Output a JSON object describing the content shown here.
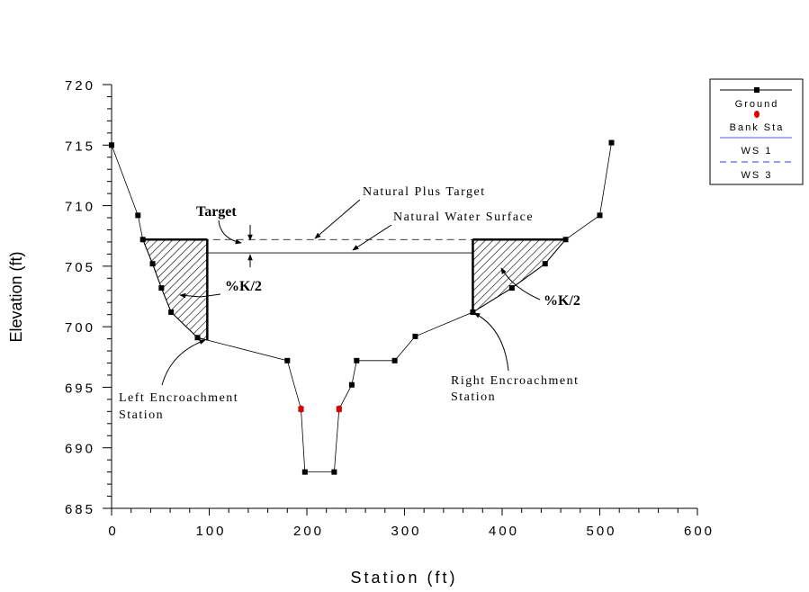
{
  "chart_data": {
    "type": "line",
    "xlabel": "Station (ft)",
    "ylabel": "Elevation (ft)",
    "xlim": [
      0,
      600
    ],
    "ylim": [
      685,
      720
    ],
    "xticks": [
      0,
      100,
      200,
      300,
      400,
      500,
      600
    ],
    "yticks": [
      685,
      690,
      695,
      700,
      705,
      710,
      715,
      720
    ],
    "grid": false,
    "legend_placement": "top-right",
    "series": [
      {
        "name": "Ground",
        "style": "solid-with-square-markers",
        "color": "#000000",
        "x": [
          0,
          27,
          32,
          42,
          51,
          61,
          88,
          180,
          194,
          198,
          228,
          233,
          246,
          251,
          290,
          311,
          370,
          410,
          444,
          465,
          500,
          512
        ],
        "y": [
          715,
          709.2,
          707.2,
          705.2,
          703.2,
          701.2,
          699.1,
          697.2,
          693.2,
          688,
          688,
          693.2,
          695.2,
          697.2,
          697.2,
          699.2,
          701.2,
          703.2,
          705.2,
          707.2,
          709.2,
          715.2
        ]
      },
      {
        "name": "Bank Sta",
        "style": "red-dot",
        "color": "#e00000",
        "x": [
          194,
          233
        ],
        "y": [
          693.2,
          693.2
        ]
      },
      {
        "name": "WS 1",
        "style": "solid",
        "color": "#000000",
        "x": [
          98,
          370
        ],
        "y": [
          706.1,
          706.1
        ]
      },
      {
        "name": "WS 3",
        "style": "dashed",
        "color": "#000000",
        "x": [
          32,
          465
        ],
        "y": [
          707.2,
          707.2
        ]
      }
    ],
    "legend": [
      "Ground",
      "Bank Sta",
      "WS 1",
      "WS 3"
    ],
    "encroachments": {
      "left_station": 98,
      "right_station": 370
    },
    "annotations": {
      "target": "Target",
      "natural_plus_target": "Natural Plus Target",
      "natural_ws": "Natural Water Surface",
      "k_left": "%K/2",
      "k_right": "%K/2",
      "left_enc_1": "Left Encroachment",
      "left_enc_2": "Station",
      "right_enc_1": "Right Encroachment",
      "right_enc_2": "Station"
    }
  }
}
